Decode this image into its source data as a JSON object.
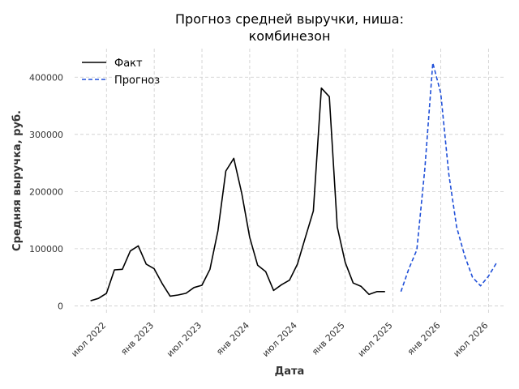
{
  "chart_data": {
    "type": "line",
    "title_line1": "Прогноз средней выручки, ниша:",
    "title_line2": "комбинезон",
    "xlabel": "Дата",
    "ylabel": "Средняя выручка, руб.",
    "xlim": [
      "2022-03",
      "2026-09"
    ],
    "ylim": [
      -15000,
      450000
    ],
    "x_ticks": [
      {
        "date": "2022-07",
        "label": "июл 2022"
      },
      {
        "date": "2023-01",
        "label": "янв 2023"
      },
      {
        "date": "2023-07",
        "label": "июл 2023"
      },
      {
        "date": "2024-01",
        "label": "янв 2024"
      },
      {
        "date": "2024-07",
        "label": "июл 2024"
      },
      {
        "date": "2025-01",
        "label": "янв 2025"
      },
      {
        "date": "2025-07",
        "label": "июл 2025"
      },
      {
        "date": "2026-01",
        "label": "янв 2026"
      },
      {
        "date": "2026-07",
        "label": "июл 2026"
      }
    ],
    "y_ticks": [
      {
        "value": 0,
        "label": "0"
      },
      {
        "value": 100000,
        "label": "100000"
      },
      {
        "value": 200000,
        "label": "200000"
      },
      {
        "value": 300000,
        "label": "300000"
      },
      {
        "value": 400000,
        "label": "400000"
      }
    ],
    "grid": true,
    "legend_position": "top-left",
    "series": [
      {
        "name": "Факт",
        "color": "#000000",
        "style": "solid",
        "x": [
          "2022-05",
          "2022-06",
          "2022-07",
          "2022-08",
          "2022-09",
          "2022-10",
          "2022-11",
          "2022-12",
          "2023-01",
          "2023-02",
          "2023-03",
          "2023-04",
          "2023-05",
          "2023-06",
          "2023-07",
          "2023-08",
          "2023-09",
          "2023-10",
          "2023-11",
          "2023-12",
          "2024-01",
          "2024-02",
          "2024-03",
          "2024-04",
          "2024-05",
          "2024-06",
          "2024-07",
          "2024-08",
          "2024-09",
          "2024-10",
          "2024-11",
          "2024-12",
          "2025-01",
          "2025-02",
          "2025-03",
          "2025-04",
          "2025-05",
          "2025-06",
          "2025-07",
          "2025-08"
        ],
        "values": [
          9000,
          13000,
          22000,
          63000,
          64000,
          96000,
          105000,
          73000,
          65000,
          39000,
          17000,
          19000,
          22000,
          32000,
          36000,
          64000,
          131000,
          236000,
          258000,
          197000,
          120000,
          71000,
          60000,
          27000,
          37000,
          45000,
          73000,
          120000,
          166000,
          381000,
          366000,
          138000,
          76000,
          40000,
          34000,
          20000,
          25000,
          25000,
          null,
          null
        ]
      },
      {
        "name": "Прогноз",
        "color": "#1f4fd8",
        "style": "dashed",
        "x": [
          "2025-08",
          "2025-09",
          "2025-10",
          "2025-11",
          "2025-12",
          "2026-01",
          "2026-02",
          "2026-03",
          "2026-04",
          "2026-05",
          "2026-06",
          "2026-07",
          "2026-08"
        ],
        "values": [
          25000,
          65000,
          98000,
          240000,
          425000,
          372000,
          232000,
          138000,
          88000,
          50000,
          35000,
          52000,
          75000
        ]
      }
    ]
  }
}
